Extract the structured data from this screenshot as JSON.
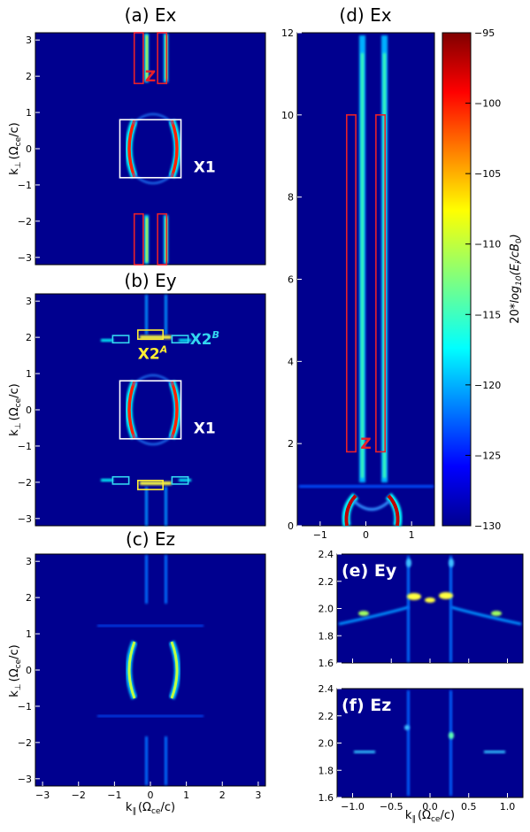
{
  "colors": {
    "background": "#00008f",
    "box_red": "#e8202a",
    "box_white": "#ffffff",
    "box_yellow": "#ffee33",
    "box_cyan": "#33d6f0"
  },
  "colorbar": {
    "label": "20*log10(E_i/cB_0)",
    "label_main": "20*",
    "label_log": "log",
    "label_sub": "10",
    "label_args": "(E",
    "label_i": "i",
    "label_rest": "/cB",
    "label_zero": "0",
    "label_close": ")",
    "ticks": [
      "-95",
      "-100",
      "-105",
      "-110",
      "-115",
      "-120",
      "-125",
      "-130"
    ],
    "range": [
      -130,
      -95
    ],
    "colormap": "jet"
  },
  "chart_data": [
    {
      "id": "a",
      "type": "heatmap",
      "title": "(a) Ex",
      "ylabel_main": "k",
      "ylabel_sub": "⊥",
      "ylabel_units": "(Ω",
      "ylabel_units_sub": "ce",
      "ylabel_units_tail": "/c)",
      "xlim": [
        -3.2,
        3.2
      ],
      "ylim": [
        -3.2,
        3.2
      ],
      "yticks": [
        "3",
        "2",
        "1",
        "0",
        "−1",
        "−2",
        "−3"
      ],
      "annotations": [
        {
          "text": "Z",
          "color": "box_red",
          "x": 0.0,
          "y": 2.0
        },
        {
          "text": "X1",
          "color": "box_white",
          "x": 1.2,
          "y": -0.5
        }
      ],
      "boxes": [
        {
          "color": "box_red",
          "x": [
            -0.45,
            -0.2
          ],
          "y": [
            1.8,
            3.2
          ]
        },
        {
          "color": "box_red",
          "x": [
            0.2,
            0.45
          ],
          "y": [
            1.8,
            3.2
          ]
        },
        {
          "color": "box_white",
          "x": [
            -0.85,
            0.85
          ],
          "y": [
            -0.8,
            0.8
          ]
        },
        {
          "color": "box_red",
          "x": [
            -0.45,
            -0.2
          ],
          "y": [
            -3.2,
            -1.8
          ]
        },
        {
          "color": "box_red",
          "x": [
            0.2,
            0.45
          ],
          "y": [
            -3.2,
            -1.8
          ]
        }
      ]
    },
    {
      "id": "b",
      "type": "heatmap",
      "title": "(b) Ey",
      "ylabel_main": "k",
      "ylabel_sub": "⊥",
      "ylabel_units": "(Ω",
      "ylabel_units_sub": "ce",
      "ylabel_units_tail": "/c)",
      "xlim": [
        -3.2,
        3.2
      ],
      "ylim": [
        -3.2,
        3.2
      ],
      "yticks": [
        "3",
        "2",
        "1",
        "0",
        "−1",
        "−2",
        "−3"
      ],
      "annotations": [
        {
          "text": "X2",
          "sup": "A",
          "color": "box_yellow",
          "x": -0.35,
          "y": 1.55
        },
        {
          "text": "X2",
          "sup": "B",
          "color": "box_cyan",
          "x": 1.1,
          "y": 1.95
        },
        {
          "text": "X1",
          "color": "box_white",
          "x": 1.2,
          "y": -0.5
        }
      ],
      "boxes": [
        {
          "color": "box_yellow",
          "x": [
            -0.35,
            0.35
          ],
          "y": [
            1.95,
            2.2
          ]
        },
        {
          "color": "box_cyan",
          "x": [
            -1.05,
            -0.6
          ],
          "y": [
            1.85,
            2.05
          ]
        },
        {
          "color": "box_cyan",
          "x": [
            0.6,
            1.05
          ],
          "y": [
            1.85,
            2.05
          ]
        },
        {
          "color": "box_white",
          "x": [
            -0.85,
            0.85
          ],
          "y": [
            -0.8,
            0.8
          ]
        },
        {
          "color": "box_cyan",
          "x": [
            -1.05,
            -0.6
          ],
          "y": [
            -2.05,
            -1.85
          ]
        },
        {
          "color": "box_cyan",
          "x": [
            0.6,
            1.05
          ],
          "y": [
            -2.05,
            -1.85
          ]
        },
        {
          "color": "box_yellow",
          "x": [
            -0.35,
            0.35
          ],
          "y": [
            -2.2,
            -1.95
          ]
        }
      ]
    },
    {
      "id": "c",
      "type": "heatmap",
      "title": "(c) Ez",
      "xlabel_main": "k",
      "xlabel_sub": "∥",
      "xlabel_units": "(Ω",
      "xlabel_units_sub": "ce",
      "xlabel_units_tail": "/c)",
      "ylabel_main": "k",
      "ylabel_sub": "⊥",
      "ylabel_units": "(Ω",
      "ylabel_units_sub": "ce",
      "ylabel_units_tail": "/c)",
      "xlim": [
        -3.2,
        3.2
      ],
      "ylim": [
        -3.2,
        3.2
      ],
      "xticks": [
        "−3",
        "−2",
        "−1",
        "0",
        "1",
        "2",
        "3"
      ],
      "yticks": [
        "3",
        "2",
        "1",
        "0",
        "−1",
        "−2",
        "−3"
      ]
    },
    {
      "id": "d",
      "type": "heatmap",
      "title": "(d) Ex",
      "xlim": [
        -1.5,
        1.5
      ],
      "ylim": [
        0,
        12
      ],
      "xticks": [
        "−1",
        "0",
        "1"
      ],
      "yticks": [
        "12",
        "10",
        "8",
        "6",
        "4",
        "2",
        "0"
      ],
      "annotations": [
        {
          "text": "Z",
          "color": "box_red",
          "x": 0.0,
          "y": 2.0
        }
      ],
      "boxes": [
        {
          "color": "box_red",
          "x": [
            -0.42,
            -0.22
          ],
          "y": [
            1.8,
            10.0
          ]
        },
        {
          "color": "box_red",
          "x": [
            0.22,
            0.42
          ],
          "y": [
            1.8,
            10.0
          ]
        }
      ]
    },
    {
      "id": "e",
      "type": "heatmap",
      "title": "(e) Ey",
      "xlim": [
        -1.2,
        1.2
      ],
      "ylim": [
        1.6,
        2.4
      ],
      "yticks": [
        "2.4",
        "2.2",
        "2.0",
        "1.8",
        "1.6"
      ]
    },
    {
      "id": "f",
      "type": "heatmap",
      "title": "(f) Ez",
      "xlabel_main": "k",
      "xlabel_sub": "∥",
      "xlabel_units": "(Ω",
      "xlabel_units_sub": "ce",
      "xlabel_units_tail": "/c)",
      "xlim": [
        -1.2,
        1.2
      ],
      "ylim": [
        1.6,
        2.4
      ],
      "xticks": [
        "−1.0",
        "−0.5",
        "0.0",
        "0.5",
        "1.0"
      ],
      "yticks": [
        "2.4",
        "2.2",
        "2.0",
        "1.8",
        "1.6"
      ]
    }
  ]
}
